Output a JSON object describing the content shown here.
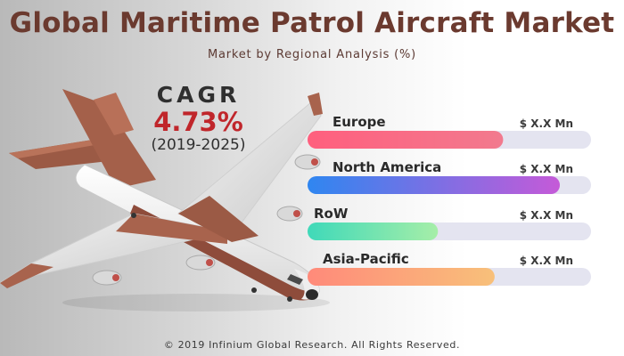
{
  "header": {
    "title": "Global Maritime Patrol Aircraft Market",
    "subtitle": "Market by Regional Analysis (%)"
  },
  "cagr": {
    "label": "CAGR",
    "value": "4.73%",
    "period": "(2019-2025)"
  },
  "footer": {
    "copyright": "© 2019 Infinium Global Research. All Rights Reserved."
  },
  "icons": {
    "illustration": "maritime-patrol-aircraft-icon"
  },
  "chart_data": {
    "type": "bar",
    "orientation": "horizontal",
    "categories": [
      "Europe",
      "North America",
      "RoW",
      "Asia-Pacific"
    ],
    "values": [
      0.69,
      0.89,
      0.46,
      0.66
    ],
    "value_labels": [
      "$ X.X Mn",
      "$ X.X Mn",
      "$ X.X Mn",
      "$ X.X Mn"
    ],
    "colors": [
      [
        "#ff5f7e",
        "#f27a8e"
      ],
      [
        "#2f86f0",
        "#c55ad8"
      ],
      [
        "#3fd9b9",
        "#a6eea8"
      ],
      [
        "#ff8a7a",
        "#f8c07a"
      ]
    ],
    "track_color": "#e4e4f0",
    "xlim": [
      0,
      1
    ],
    "grid": false,
    "legend": "none"
  }
}
